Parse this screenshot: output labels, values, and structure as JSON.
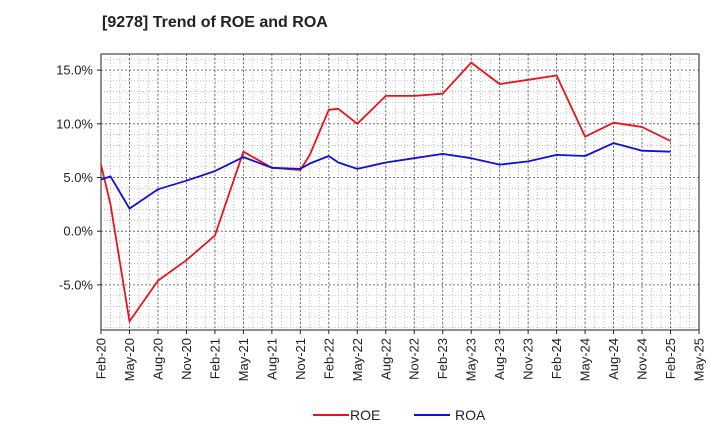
{
  "title": "[9278]  Trend of ROE and ROA",
  "chart_data": {
    "type": "line",
    "title": "[9278]  Trend of ROE and ROA",
    "xlabel": "",
    "ylabel": "",
    "ylim": [
      -9.2,
      16.5
    ],
    "yticks": [
      15.0,
      10.0,
      5.0,
      0.0,
      -5.0
    ],
    "ytick_labels": [
      "15.0%",
      "10.0%",
      "5.0%",
      "0.0%",
      "-5.0%"
    ],
    "xticks": [
      "Feb-20",
      "May-20",
      "Aug-20",
      "Nov-20",
      "Feb-21",
      "May-21",
      "Aug-21",
      "Nov-21",
      "Feb-22",
      "May-22",
      "Aug-22",
      "Nov-22",
      "Feb-23",
      "May-23",
      "Aug-23",
      "Nov-23",
      "Feb-24",
      "May-24",
      "Aug-24",
      "Nov-24",
      "Feb-25",
      "May-25"
    ],
    "grid": true,
    "legend_position": "bottom-center",
    "series": [
      {
        "name": "ROE",
        "color": "#e8141b",
        "points": [
          [
            "Feb-20",
            6.2
          ],
          [
            "Mar-20",
            2.5
          ],
          [
            "May-20",
            -8.4
          ],
          [
            "Aug-20",
            -4.6
          ],
          [
            "Nov-20",
            -2.7
          ],
          [
            "Feb-21",
            -0.4
          ],
          [
            "May-21",
            7.4
          ],
          [
            "Aug-21",
            5.9
          ],
          [
            "Nov-21",
            5.7
          ],
          [
            "Dec-21",
            7.1
          ],
          [
            "Feb-22",
            11.3
          ],
          [
            "Mar-22",
            11.4
          ],
          [
            "May-22",
            10.0
          ],
          [
            "Aug-22",
            12.6
          ],
          [
            "Nov-22",
            12.6
          ],
          [
            "Feb-23",
            12.8
          ],
          [
            "May-23",
            15.7
          ],
          [
            "Aug-23",
            13.7
          ],
          [
            "Nov-23",
            14.1
          ],
          [
            "Feb-24",
            14.5
          ],
          [
            "May-24",
            8.8
          ],
          [
            "Aug-24",
            10.1
          ],
          [
            "Nov-24",
            9.7
          ],
          [
            "Feb-25",
            8.4
          ]
        ]
      },
      {
        "name": "ROA",
        "color": "#1010dd",
        "points": [
          [
            "Feb-20",
            4.8
          ],
          [
            "Mar-20",
            5.1
          ],
          [
            "May-20",
            2.1
          ],
          [
            "Aug-20",
            3.9
          ],
          [
            "Nov-20",
            4.7
          ],
          [
            "Feb-21",
            5.6
          ],
          [
            "May-21",
            6.9
          ],
          [
            "Aug-21",
            5.9
          ],
          [
            "Nov-21",
            5.8
          ],
          [
            "Dec-21",
            6.3
          ],
          [
            "Feb-22",
            7.0
          ],
          [
            "Mar-22",
            6.4
          ],
          [
            "May-22",
            5.8
          ],
          [
            "Aug-22",
            6.4
          ],
          [
            "Nov-22",
            6.8
          ],
          [
            "Feb-23",
            7.2
          ],
          [
            "May-23",
            6.8
          ],
          [
            "Aug-23",
            6.2
          ],
          [
            "Nov-23",
            6.5
          ],
          [
            "Feb-24",
            7.1
          ],
          [
            "May-24",
            7.0
          ],
          [
            "Aug-24",
            8.2
          ],
          [
            "Nov-24",
            7.5
          ],
          [
            "Feb-25",
            7.4
          ]
        ]
      }
    ]
  }
}
